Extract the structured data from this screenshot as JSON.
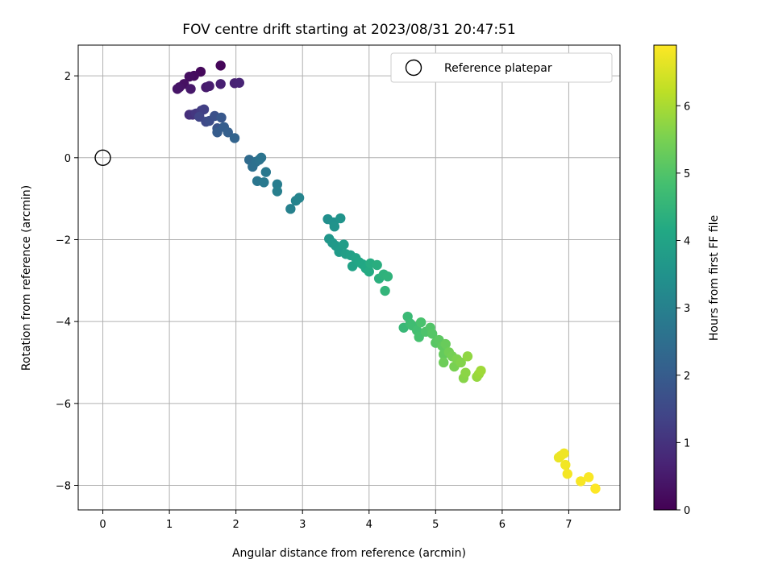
{
  "chart_data": {
    "type": "scatter",
    "title": "FOV centre drift starting at 2023/08/31 20:47:51",
    "xlabel": "Angular distance from reference (arcmin)",
    "ylabel": "Rotation from reference (arcmin)",
    "xlim": [
      -0.37,
      7.77
    ],
    "ylim": [
      -8.6,
      2.75
    ],
    "xticks": [
      0,
      1,
      2,
      3,
      4,
      5,
      6,
      7
    ],
    "yticks": [
      2,
      0,
      -2,
      -4,
      -6,
      -8
    ],
    "xtick_labels": [
      "0",
      "1",
      "2",
      "3",
      "4",
      "5",
      "6",
      "7"
    ],
    "ytick_labels": [
      "2",
      "0",
      "−2",
      "−4",
      "−6",
      "−8"
    ],
    "grid": true,
    "legend": {
      "position": "top-right",
      "entries": [
        "Reference platepar"
      ]
    },
    "reference_point": {
      "x": 0,
      "y": 0,
      "label": "Reference platepar"
    },
    "colorbar": {
      "label": "Hours from first FF file",
      "range": [
        0,
        6.9
      ],
      "ticks": [
        0,
        1,
        2,
        3,
        4,
        5,
        6
      ],
      "tick_labels": [
        "0",
        "1",
        "2",
        "3",
        "4",
        "5",
        "6"
      ],
      "colormap": "viridis"
    },
    "points": [
      {
        "x": 1.77,
        "y": 2.25,
        "t": 0.1
      },
      {
        "x": 1.47,
        "y": 2.1,
        "t": 0.15
      },
      {
        "x": 1.37,
        "y": 2.0,
        "t": 0.2
      },
      {
        "x": 1.3,
        "y": 1.98,
        "t": 0.25
      },
      {
        "x": 1.22,
        "y": 1.8,
        "t": 0.3
      },
      {
        "x": 1.15,
        "y": 1.72,
        "t": 0.35
      },
      {
        "x": 1.12,
        "y": 1.68,
        "t": 0.4
      },
      {
        "x": 1.32,
        "y": 1.68,
        "t": 0.45
      },
      {
        "x": 1.55,
        "y": 1.72,
        "t": 0.5
      },
      {
        "x": 1.6,
        "y": 1.75,
        "t": 0.55
      },
      {
        "x": 1.77,
        "y": 1.8,
        "t": 0.6
      },
      {
        "x": 1.98,
        "y": 1.82,
        "t": 0.65
      },
      {
        "x": 2.05,
        "y": 1.83,
        "t": 0.7
      },
      {
        "x": 1.3,
        "y": 1.05,
        "t": 0.9
      },
      {
        "x": 1.35,
        "y": 1.05,
        "t": 1.0
      },
      {
        "x": 1.4,
        "y": 1.08,
        "t": 1.1
      },
      {
        "x": 1.48,
        "y": 1.15,
        "t": 1.2
      },
      {
        "x": 1.52,
        "y": 1.18,
        "t": 1.3
      },
      {
        "x": 1.45,
        "y": 1.0,
        "t": 1.4
      },
      {
        "x": 1.55,
        "y": 0.88,
        "t": 1.5
      },
      {
        "x": 1.6,
        "y": 0.9,
        "t": 1.6
      },
      {
        "x": 1.68,
        "y": 1.02,
        "t": 1.7
      },
      {
        "x": 1.72,
        "y": 0.72,
        "t": 1.8
      },
      {
        "x": 1.78,
        "y": 0.98,
        "t": 1.9
      },
      {
        "x": 1.72,
        "y": 0.62,
        "t": 2.0
      },
      {
        "x": 1.82,
        "y": 0.75,
        "t": 2.05
      },
      {
        "x": 1.88,
        "y": 0.62,
        "t": 2.1
      },
      {
        "x": 1.98,
        "y": 0.48,
        "t": 2.2
      },
      {
        "x": 2.2,
        "y": -0.05,
        "t": 2.4
      },
      {
        "x": 2.25,
        "y": -0.22,
        "t": 2.5
      },
      {
        "x": 2.3,
        "y": -0.1,
        "t": 2.55
      },
      {
        "x": 2.35,
        "y": -0.05,
        "t": 2.6
      },
      {
        "x": 2.38,
        "y": 0.0,
        "t": 2.65
      },
      {
        "x": 2.32,
        "y": -0.57,
        "t": 2.7
      },
      {
        "x": 2.45,
        "y": -0.35,
        "t": 2.75
      },
      {
        "x": 2.42,
        "y": -0.6,
        "t": 2.8
      },
      {
        "x": 2.62,
        "y": -0.65,
        "t": 2.9
      },
      {
        "x": 2.62,
        "y": -0.82,
        "t": 2.95
      },
      {
        "x": 2.82,
        "y": -1.25,
        "t": 3.0
      },
      {
        "x": 2.9,
        "y": -1.05,
        "t": 3.05
      },
      {
        "x": 2.95,
        "y": -0.98,
        "t": 3.1
      },
      {
        "x": 3.38,
        "y": -1.5,
        "t": 3.4
      },
      {
        "x": 3.47,
        "y": -1.58,
        "t": 3.45
      },
      {
        "x": 3.48,
        "y": -1.68,
        "t": 3.5
      },
      {
        "x": 3.57,
        "y": -1.48,
        "t": 3.55
      },
      {
        "x": 3.4,
        "y": -1.98,
        "t": 3.6
      },
      {
        "x": 3.45,
        "y": -2.08,
        "t": 3.65
      },
      {
        "x": 3.5,
        "y": -2.15,
        "t": 3.7
      },
      {
        "x": 3.55,
        "y": -2.3,
        "t": 3.75
      },
      {
        "x": 3.62,
        "y": -2.12,
        "t": 3.8
      },
      {
        "x": 3.65,
        "y": -2.35,
        "t": 3.85
      },
      {
        "x": 3.72,
        "y": -2.38,
        "t": 3.9
      },
      {
        "x": 3.75,
        "y": -2.65,
        "t": 3.95
      },
      {
        "x": 3.8,
        "y": -2.45,
        "t": 4.0
      },
      {
        "x": 3.85,
        "y": -2.55,
        "t": 4.05
      },
      {
        "x": 3.9,
        "y": -2.6,
        "t": 4.1
      },
      {
        "x": 3.95,
        "y": -2.7,
        "t": 4.15
      },
      {
        "x": 4.0,
        "y": -2.78,
        "t": 4.2
      },
      {
        "x": 4.02,
        "y": -2.58,
        "t": 4.25
      },
      {
        "x": 4.12,
        "y": -2.62,
        "t": 4.3
      },
      {
        "x": 4.15,
        "y": -2.95,
        "t": 4.35
      },
      {
        "x": 4.22,
        "y": -2.85,
        "t": 4.4
      },
      {
        "x": 4.28,
        "y": -2.9,
        "t": 4.45
      },
      {
        "x": 4.24,
        "y": -3.25,
        "t": 4.5
      },
      {
        "x": 4.52,
        "y": -4.15,
        "t": 4.6
      },
      {
        "x": 4.58,
        "y": -3.88,
        "t": 4.65
      },
      {
        "x": 4.62,
        "y": -4.05,
        "t": 4.7
      },
      {
        "x": 4.65,
        "y": -4.1,
        "t": 4.75
      },
      {
        "x": 4.72,
        "y": -4.22,
        "t": 4.8
      },
      {
        "x": 4.75,
        "y": -4.38,
        "t": 4.85
      },
      {
        "x": 4.78,
        "y": -4.02,
        "t": 4.9
      },
      {
        "x": 4.85,
        "y": -4.25,
        "t": 4.95
      },
      {
        "x": 4.92,
        "y": -4.15,
        "t": 5.0
      },
      {
        "x": 4.95,
        "y": -4.3,
        "t": 5.05
      },
      {
        "x": 5.0,
        "y": -4.52,
        "t": 5.1
      },
      {
        "x": 5.05,
        "y": -4.45,
        "t": 5.15
      },
      {
        "x": 5.1,
        "y": -4.6,
        "t": 5.2
      },
      {
        "x": 5.12,
        "y": -4.8,
        "t": 5.25
      },
      {
        "x": 5.15,
        "y": -4.55,
        "t": 5.3
      },
      {
        "x": 5.12,
        "y": -5.0,
        "t": 5.35
      },
      {
        "x": 5.2,
        "y": -4.75,
        "t": 5.4
      },
      {
        "x": 5.25,
        "y": -4.85,
        "t": 5.45
      },
      {
        "x": 5.28,
        "y": -5.1,
        "t": 5.5
      },
      {
        "x": 5.32,
        "y": -4.92,
        "t": 5.55
      },
      {
        "x": 5.38,
        "y": -5.0,
        "t": 5.6
      },
      {
        "x": 5.42,
        "y": -5.38,
        "t": 5.65
      },
      {
        "x": 5.45,
        "y": -5.25,
        "t": 5.7
      },
      {
        "x": 5.48,
        "y": -4.85,
        "t": 5.75
      },
      {
        "x": 5.62,
        "y": -5.35,
        "t": 5.8
      },
      {
        "x": 5.65,
        "y": -5.28,
        "t": 5.85
      },
      {
        "x": 5.68,
        "y": -5.2,
        "t": 5.9
      },
      {
        "x": 6.85,
        "y": -7.32,
        "t": 6.7
      },
      {
        "x": 6.88,
        "y": -7.28,
        "t": 6.72
      },
      {
        "x": 6.93,
        "y": -7.22,
        "t": 6.75
      },
      {
        "x": 6.95,
        "y": -7.5,
        "t": 6.78
      },
      {
        "x": 6.98,
        "y": -7.72,
        "t": 6.8
      },
      {
        "x": 7.18,
        "y": -7.9,
        "t": 6.83
      },
      {
        "x": 7.3,
        "y": -7.8,
        "t": 6.86
      },
      {
        "x": 7.4,
        "y": -8.08,
        "t": 6.9
      }
    ]
  }
}
